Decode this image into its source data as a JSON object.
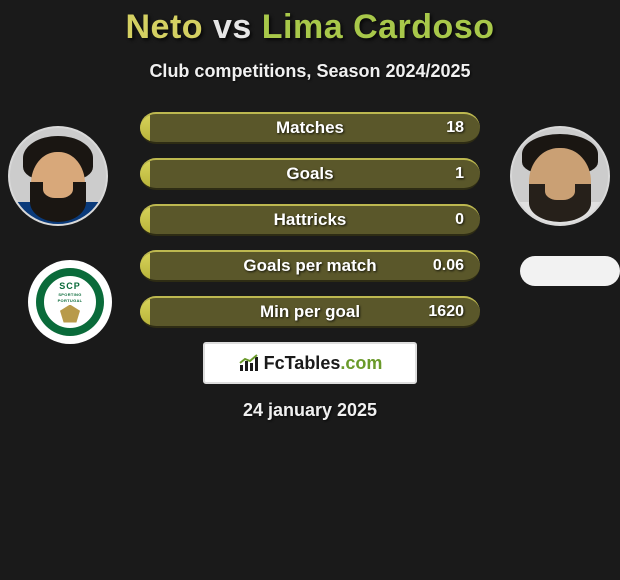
{
  "title": {
    "player1": "Neto",
    "vs": "vs",
    "player2": "Lima Cardoso"
  },
  "subtitle": "Club competitions, Season 2024/2025",
  "date": "24 january 2025",
  "colors": {
    "player1_accent": "#d4d062",
    "player2_accent": "#a8c84a",
    "bar_track": "#5a572a",
    "bar_fill": "#c8c348",
    "background": "#1a1a1a"
  },
  "stats": [
    {
      "label": "Matches",
      "value": "18",
      "fill_pct": 3
    },
    {
      "label": "Goals",
      "value": "1",
      "fill_pct": 3
    },
    {
      "label": "Hattricks",
      "value": "0",
      "fill_pct": 3
    },
    {
      "label": "Goals per match",
      "value": "0.06",
      "fill_pct": 3
    },
    {
      "label": "Min per goal",
      "value": "1620",
      "fill_pct": 3
    }
  ],
  "club_left": {
    "code": "SCP",
    "sub1": "SPORTING",
    "sub2": "PORTUGAL"
  },
  "logo": {
    "brand": "FcTables",
    "domain": ".com"
  }
}
